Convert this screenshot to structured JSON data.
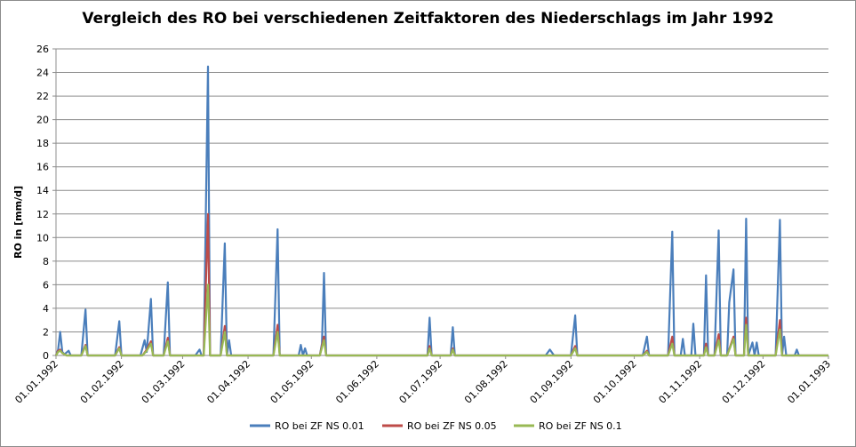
{
  "chart_data": {
    "type": "line",
    "title": "Vergleich des RO bei verschiedenen Zeitfaktoren des Niederschlags im Jahr 1992",
    "xlabel": "",
    "ylabel": "RO in  [mm/d]",
    "ylim": [
      0,
      26
    ],
    "yticks": [
      "0",
      "2",
      "4",
      "6",
      "8",
      "10",
      "12",
      "14",
      "16",
      "18",
      "20",
      "22",
      "24",
      "26"
    ],
    "xlim": [
      "01.01.1992",
      "01.01.1993"
    ],
    "xticks": [
      "01.01.1992",
      "01.02.1992",
      "01.03.1992",
      "01.04.1992",
      "01.05.1992",
      "01.06.1992",
      "01.07.1992",
      "01.08.1992",
      "01.09.1992",
      "01.10.1992",
      "01.11.1992",
      "01.12.1992",
      "01.01.1993"
    ],
    "grid": "horizontal",
    "legend_position": "bottom",
    "series": [
      {
        "name": "RO bei ZF NS 0.01",
        "color": "#4a7ebb",
        "points": [
          [
            "01.01.1992",
            0
          ],
          [
            "02.01.1992",
            0.5
          ],
          [
            "03.01.1992",
            2.0
          ],
          [
            "04.01.1992",
            0.3
          ],
          [
            "05.01.1992",
            0.1
          ],
          [
            "07.01.1992",
            0.4
          ],
          [
            "08.01.1992",
            0
          ],
          [
            "13.01.1992",
            0
          ],
          [
            "15.01.1992",
            3.9
          ],
          [
            "16.01.1992",
            0
          ],
          [
            "29.01.1992",
            0
          ],
          [
            "31.01.1992",
            2.9
          ],
          [
            "01.02.1992",
            0
          ],
          [
            "10.02.1992",
            0
          ],
          [
            "12.02.1992",
            1.3
          ],
          [
            "13.02.1992",
            0.3
          ],
          [
            "15.02.1992",
            4.8
          ],
          [
            "16.02.1992",
            0
          ],
          [
            "21.02.1992",
            0
          ],
          [
            "23.02.1992",
            6.2
          ],
          [
            "24.02.1992",
            0
          ],
          [
            "07.03.1992",
            0
          ],
          [
            "09.03.1992",
            0.5
          ],
          [
            "10.03.1992",
            0
          ],
          [
            "11.03.1992",
            0
          ],
          [
            "13.03.1992",
            24.5
          ],
          [
            "14.03.1992",
            0
          ],
          [
            "19.03.1992",
            0
          ],
          [
            "21.03.1992",
            9.5
          ],
          [
            "22.03.1992",
            0
          ],
          [
            "23.03.1992",
            1.3
          ],
          [
            "24.03.1992",
            0
          ],
          [
            "13.04.1992",
            0
          ],
          [
            "15.04.1992",
            10.7
          ],
          [
            "16.04.1992",
            0
          ],
          [
            "25.04.1992",
            0
          ],
          [
            "26.04.1992",
            0.9
          ],
          [
            "27.04.1992",
            0
          ],
          [
            "28.04.1992",
            0.6
          ],
          [
            "29.04.1992",
            0
          ],
          [
            "05.05.1992",
            0
          ],
          [
            "06.05.1992",
            1.0
          ],
          [
            "07.05.1992",
            7.0
          ],
          [
            "08.05.1992",
            0
          ],
          [
            "25.06.1992",
            0
          ],
          [
            "26.06.1992",
            3.2
          ],
          [
            "27.06.1992",
            0
          ],
          [
            "06.07.1992",
            0
          ],
          [
            "07.07.1992",
            2.4
          ],
          [
            "08.07.1992",
            0
          ],
          [
            "20.08.1992",
            0
          ],
          [
            "22.08.1992",
            0.5
          ],
          [
            "24.08.1992",
            0
          ],
          [
            "01.09.1992",
            0
          ],
          [
            "03.09.1992",
            3.4
          ],
          [
            "04.09.1992",
            0
          ],
          [
            "05.10.1992",
            0
          ],
          [
            "07.10.1992",
            1.6
          ],
          [
            "08.10.1992",
            0
          ],
          [
            "17.10.1992",
            0
          ],
          [
            "19.10.1992",
            10.5
          ],
          [
            "20.10.1992",
            0
          ],
          [
            "23.10.1992",
            0
          ],
          [
            "24.10.1992",
            1.4
          ],
          [
            "25.10.1992",
            0
          ],
          [
            "28.10.1992",
            0
          ],
          [
            "29.10.1992",
            2.7
          ],
          [
            "30.10.1992",
            0
          ],
          [
            "03.11.1992",
            0
          ],
          [
            "04.11.1992",
            6.8
          ],
          [
            "05.11.1992",
            0
          ],
          [
            "08.11.1992",
            0
          ],
          [
            "10.11.1992",
            10.6
          ],
          [
            "11.11.1992",
            0
          ],
          [
            "14.11.1992",
            0
          ],
          [
            "15.11.1992",
            4.5
          ],
          [
            "17.11.1992",
            7.3
          ],
          [
            "18.11.1992",
            0
          ],
          [
            "22.11.1992",
            0
          ],
          [
            "23.11.1992",
            11.6
          ],
          [
            "24.11.1992",
            0
          ],
          [
            "26.11.1992",
            1.1
          ],
          [
            "27.11.1992",
            0
          ],
          [
            "28.11.1992",
            1.1
          ],
          [
            "29.11.1992",
            0
          ],
          [
            "07.12.1992",
            0
          ],
          [
            "09.12.1992",
            11.5
          ],
          [
            "10.12.1992",
            0
          ],
          [
            "11.12.1992",
            1.6
          ],
          [
            "12.12.1992",
            0
          ],
          [
            "16.12.1992",
            0
          ],
          [
            "17.12.1992",
            0.5
          ],
          [
            "18.12.1992",
            0
          ],
          [
            "01.01.1993",
            0
          ]
        ]
      },
      {
        "name": "RO bei ZF NS 0.05",
        "color": "#be4b48",
        "points": [
          [
            "01.01.1992",
            0
          ],
          [
            "02.01.1992",
            0.4
          ],
          [
            "03.01.1992",
            0.5
          ],
          [
            "04.01.1992",
            0.2
          ],
          [
            "06.01.1992",
            0
          ],
          [
            "13.01.1992",
            0
          ],
          [
            "15.01.1992",
            0.9
          ],
          [
            "16.01.1992",
            0
          ],
          [
            "29.01.1992",
            0
          ],
          [
            "31.01.1992",
            0.7
          ],
          [
            "01.02.1992",
            0
          ],
          [
            "11.02.1992",
            0
          ],
          [
            "13.02.1992",
            0.5
          ],
          [
            "15.02.1992",
            1.2
          ],
          [
            "16.02.1992",
            0
          ],
          [
            "21.02.1992",
            0
          ],
          [
            "23.02.1992",
            1.5
          ],
          [
            "24.02.1992",
            0
          ],
          [
            "11.03.1992",
            0
          ],
          [
            "13.03.1992",
            12.0
          ],
          [
            "14.03.1992",
            0
          ],
          [
            "19.03.1992",
            0
          ],
          [
            "21.03.1992",
            2.5
          ],
          [
            "22.03.1992",
            0
          ],
          [
            "13.04.1992",
            0
          ],
          [
            "15.04.1992",
            2.6
          ],
          [
            "16.04.1992",
            0
          ],
          [
            "05.05.1992",
            0
          ],
          [
            "07.05.1992",
            1.6
          ],
          [
            "08.05.1992",
            0
          ],
          [
            "25.06.1992",
            0
          ],
          [
            "26.06.1992",
            0.8
          ],
          [
            "27.06.1992",
            0
          ],
          [
            "06.07.1992",
            0
          ],
          [
            "07.07.1992",
            0.6
          ],
          [
            "08.07.1992",
            0
          ],
          [
            "01.09.1992",
            0
          ],
          [
            "03.09.1992",
            0.8
          ],
          [
            "04.09.1992",
            0
          ],
          [
            "05.10.1992",
            0
          ],
          [
            "07.10.1992",
            0.4
          ],
          [
            "08.10.1992",
            0
          ],
          [
            "17.10.1992",
            0
          ],
          [
            "19.10.1992",
            1.6
          ],
          [
            "20.10.1992",
            0
          ],
          [
            "03.11.1992",
            0
          ],
          [
            "04.11.1992",
            1.0
          ],
          [
            "05.11.1992",
            0
          ],
          [
            "08.11.1992",
            0
          ],
          [
            "10.11.1992",
            1.8
          ],
          [
            "11.11.1992",
            0
          ],
          [
            "14.11.1992",
            0
          ],
          [
            "17.11.1992",
            1.6
          ],
          [
            "18.11.1992",
            0
          ],
          [
            "22.11.1992",
            0
          ],
          [
            "23.11.1992",
            3.2
          ],
          [
            "24.11.1992",
            0
          ],
          [
            "07.12.1992",
            0
          ],
          [
            "09.12.1992",
            3.0
          ],
          [
            "10.12.1992",
            0
          ],
          [
            "01.01.1993",
            0
          ]
        ]
      },
      {
        "name": "RO bei ZF NS 0.1",
        "color": "#98b954",
        "points": [
          [
            "01.01.1992",
            0
          ],
          [
            "02.01.1992",
            0.3
          ],
          [
            "03.01.1992",
            0.4
          ],
          [
            "04.01.1992",
            0.2
          ],
          [
            "06.01.1992",
            0
          ],
          [
            "13.01.1992",
            0
          ],
          [
            "15.01.1992",
            0.8
          ],
          [
            "16.01.1992",
            0
          ],
          [
            "29.01.1992",
            0
          ],
          [
            "31.01.1992",
            0.6
          ],
          [
            "01.02.1992",
            0
          ],
          [
            "11.02.1992",
            0
          ],
          [
            "13.02.1992",
            0.4
          ],
          [
            "15.02.1992",
            1.0
          ],
          [
            "16.02.1992",
            0
          ],
          [
            "21.02.1992",
            0
          ],
          [
            "23.02.1992",
            1.2
          ],
          [
            "24.02.1992",
            0
          ],
          [
            "11.03.1992",
            0
          ],
          [
            "13.03.1992",
            6.0
          ],
          [
            "14.03.1992",
            0
          ],
          [
            "19.03.1992",
            0
          ],
          [
            "21.03.1992",
            2.0
          ],
          [
            "22.03.1992",
            0
          ],
          [
            "13.04.1992",
            0
          ],
          [
            "15.04.1992",
            2.0
          ],
          [
            "16.04.1992",
            0
          ],
          [
            "05.05.1992",
            0
          ],
          [
            "07.05.1992",
            1.3
          ],
          [
            "08.05.1992",
            0
          ],
          [
            "25.06.1992",
            0
          ],
          [
            "26.06.1992",
            0.6
          ],
          [
            "27.06.1992",
            0
          ],
          [
            "06.07.1992",
            0
          ],
          [
            "07.07.1992",
            0.5
          ],
          [
            "08.07.1992",
            0
          ],
          [
            "01.09.1992",
            0
          ],
          [
            "03.09.1992",
            0.6
          ],
          [
            "04.09.1992",
            0
          ],
          [
            "05.10.1992",
            0
          ],
          [
            "07.10.1992",
            0.3
          ],
          [
            "08.10.1992",
            0
          ],
          [
            "17.10.1992",
            0
          ],
          [
            "19.10.1992",
            1.0
          ],
          [
            "20.10.1992",
            0
          ],
          [
            "03.11.1992",
            0
          ],
          [
            "04.11.1992",
            0.7
          ],
          [
            "05.11.1992",
            0
          ],
          [
            "08.11.1992",
            0
          ],
          [
            "10.11.1992",
            1.3
          ],
          [
            "11.11.1992",
            0
          ],
          [
            "14.11.1992",
            0
          ],
          [
            "17.11.1992",
            1.4
          ],
          [
            "18.11.1992",
            0
          ],
          [
            "22.11.1992",
            0
          ],
          [
            "23.11.1992",
            2.6
          ],
          [
            "24.11.1992",
            0
          ],
          [
            "07.12.1992",
            0
          ],
          [
            "09.12.1992",
            2.2
          ],
          [
            "10.12.1992",
            0
          ],
          [
            "01.01.1993",
            0
          ]
        ]
      }
    ]
  }
}
